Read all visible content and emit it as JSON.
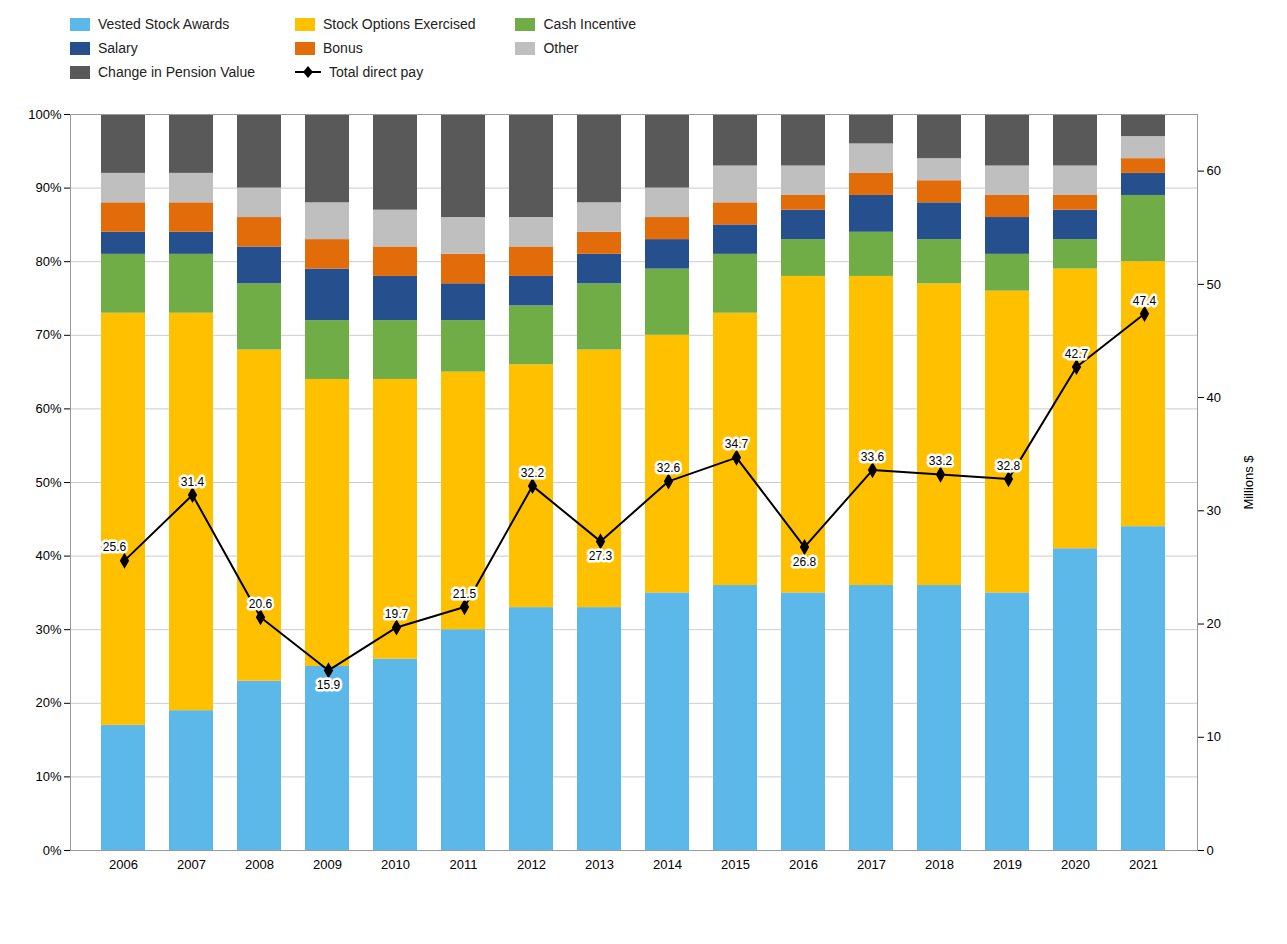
{
  "chart_data": {
    "type": "bar",
    "stacked": true,
    "categories": [
      "2006",
      "2007",
      "2008",
      "2009",
      "2010",
      "2011",
      "2012",
      "2013",
      "2014",
      "2015",
      "2016",
      "2017",
      "2018",
      "2019",
      "2020",
      "2021"
    ],
    "series": [
      {
        "name": "Vested Stock Awards",
        "type": "bar",
        "color": "#5BB8E8",
        "values": [
          17,
          19,
          23,
          25,
          26,
          30,
          33,
          33,
          35,
          36,
          35,
          36,
          36,
          35,
          41,
          44
        ]
      },
      {
        "name": "Stock Options Exercised",
        "type": "bar",
        "color": "#FFC000",
        "values": [
          56,
          54,
          45,
          39,
          38,
          35,
          33,
          35,
          35,
          37,
          43,
          42,
          41,
          41,
          38,
          36
        ]
      },
      {
        "name": "Cash Incentive",
        "type": "bar",
        "color": "#70AD47",
        "values": [
          8,
          8,
          9,
          8,
          8,
          7,
          8,
          9,
          9,
          8,
          5,
          6,
          6,
          5,
          4,
          9
        ]
      },
      {
        "name": "Salary",
        "type": "bar",
        "color": "#264F8E",
        "values": [
          3,
          3,
          5,
          7,
          6,
          5,
          4,
          4,
          4,
          4,
          4,
          5,
          5,
          5,
          4,
          3
        ]
      },
      {
        "name": "Bonus",
        "type": "bar",
        "color": "#E36C0A",
        "values": [
          4,
          4,
          4,
          4,
          4,
          4,
          4,
          3,
          3,
          3,
          2,
          3,
          3,
          3,
          2,
          2
        ]
      },
      {
        "name": "Other",
        "type": "bar",
        "color": "#BFBFBF",
        "values": [
          4,
          4,
          4,
          5,
          5,
          5,
          4,
          4,
          4,
          5,
          4,
          4,
          3,
          4,
          4,
          3
        ]
      },
      {
        "name": "Change in Pension Value",
        "type": "bar",
        "color": "#595959",
        "values": [
          8,
          8,
          10,
          12,
          13,
          14,
          14,
          12,
          10,
          7,
          7,
          4,
          6,
          7,
          7,
          3
        ]
      },
      {
        "name": "Total direct pay",
        "type": "line",
        "axis": "y2",
        "color": "#000000",
        "marker": "diamond",
        "data_labels": true,
        "values": [
          25.6,
          31.4,
          20.6,
          15.9,
          19.7,
          21.5,
          32.2,
          27.3,
          32.6,
          34.7,
          26.8,
          33.6,
          33.2,
          32.8,
          42.7,
          47.4
        ]
      }
    ],
    "ylim": [
      0,
      100
    ],
    "yticks": [
      {
        "value": 0,
        "label": "0%"
      },
      {
        "value": 10,
        "label": "10%"
      },
      {
        "value": 20,
        "label": "20%"
      },
      {
        "value": 30,
        "label": "30%"
      },
      {
        "value": 40,
        "label": "40%"
      },
      {
        "value": 50,
        "label": "50%"
      },
      {
        "value": 60,
        "label": "60%"
      },
      {
        "value": 70,
        "label": "70%"
      },
      {
        "value": 80,
        "label": "80%"
      },
      {
        "value": 90,
        "label": "90%"
      },
      {
        "value": 100,
        "label": "100%"
      }
    ],
    "y2lim": [
      0,
      65
    ],
    "y2ticks": [
      0,
      10,
      20,
      30,
      40,
      50,
      60
    ],
    "y2label": "Millions $",
    "grid": true,
    "legend": "top"
  }
}
